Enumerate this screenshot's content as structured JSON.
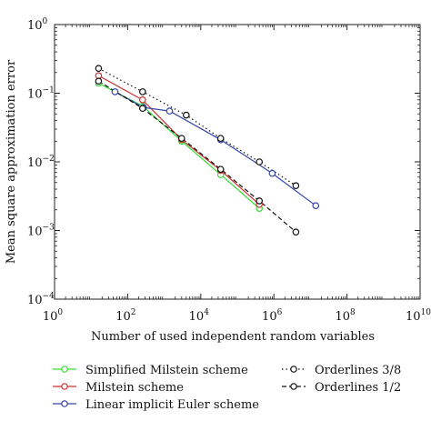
{
  "chart_data": {
    "type": "line",
    "xscale": "log",
    "yscale": "log",
    "xlabel": "Number of used independent random variables",
    "ylabel": "Mean square approximation error",
    "xlim": [
      1,
      10000000000
    ],
    "ylim": [
      0.0001,
      1
    ],
    "x_ticks": [
      {
        "value": 1,
        "base": "10",
        "exp": "0"
      },
      {
        "value": 100,
        "base": "10",
        "exp": "2"
      },
      {
        "value": 10000,
        "base": "10",
        "exp": "4"
      },
      {
        "value": 1000000,
        "base": "10",
        "exp": "6"
      },
      {
        "value": 100000000,
        "base": "10",
        "exp": "8"
      },
      {
        "value": 10000000000,
        "base": "10",
        "exp": "10"
      }
    ],
    "y_ticks": [
      {
        "value": 0.0001,
        "base": "10",
        "exp": "−4"
      },
      {
        "value": 0.001,
        "base": "10",
        "exp": "−3"
      },
      {
        "value": 0.01,
        "base": "10",
        "exp": "−2"
      },
      {
        "value": 0.1,
        "base": "10",
        "exp": "−1"
      },
      {
        "value": 1,
        "base": "10",
        "exp": "0"
      }
    ],
    "grid": false,
    "legend_position": "bottom",
    "series": [
      {
        "name": "Simplified Milstein scheme",
        "color": "#33dd33",
        "style": "solid",
        "x": [
          16,
          256,
          3000,
          35000,
          400000
        ],
        "y": [
          0.14,
          0.065,
          0.02,
          0.0065,
          0.0021
        ]
      },
      {
        "name": "Milstein scheme",
        "color": "#cc3333",
        "style": "solid",
        "x": [
          16,
          256,
          3000,
          35000,
          400000
        ],
        "y": [
          0.18,
          0.08,
          0.021,
          0.0075,
          0.0024
        ]
      },
      {
        "name": "Linear implicit Euler scheme",
        "color": "#3344aa",
        "style": "solid",
        "x": [
          45,
          270,
          1400,
          35000,
          900000,
          14000000
        ],
        "y": [
          0.105,
          0.062,
          0.055,
          0.021,
          0.0068,
          0.0023
        ]
      },
      {
        "name": "Orderlines 3/8",
        "color": "#111111",
        "style": "dotted",
        "x": [
          16,
          256,
          4000,
          35000,
          400000,
          4000000
        ],
        "y": [
          0.23,
          0.105,
          0.048,
          0.022,
          0.01,
          0.0045
        ]
      },
      {
        "name": "Orderlines 1/2",
        "color": "#111111",
        "style": "dashed",
        "x": [
          16,
          256,
          3000,
          35000,
          400000,
          4000000
        ],
        "y": [
          0.15,
          0.06,
          0.022,
          0.0078,
          0.0027,
          0.00095
        ]
      }
    ]
  }
}
